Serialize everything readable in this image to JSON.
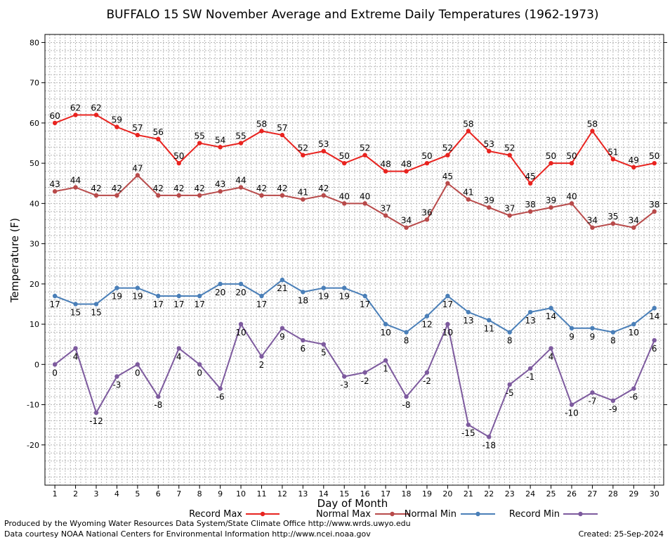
{
  "chart_data": {
    "type": "line",
    "title": "BUFFALO 15 SW November Average and Extreme Daily Temperatures (1962-1973)",
    "xlabel": "Day of Month",
    "ylabel": "Temperature (F)",
    "ylim": [
      -30,
      82
    ],
    "yticks": [
      -20,
      -10,
      0,
      10,
      20,
      30,
      40,
      50,
      60,
      70,
      80
    ],
    "x": [
      1,
      2,
      3,
      4,
      5,
      6,
      7,
      8,
      9,
      10,
      11,
      12,
      13,
      14,
      15,
      16,
      17,
      18,
      19,
      20,
      21,
      22,
      23,
      24,
      25,
      26,
      27,
      28,
      29,
      30
    ],
    "grid": true,
    "legend_position": "bottom",
    "series": [
      {
        "name": "Record Max",
        "color": "#e8231f",
        "label_pos": "above",
        "values": [
          60,
          62,
          62,
          59,
          57,
          56,
          50,
          55,
          54,
          55,
          58,
          57,
          52,
          53,
          50,
          52,
          48,
          48,
          50,
          52,
          58,
          53,
          52,
          45,
          50,
          50,
          58,
          51,
          49,
          50
        ]
      },
      {
        "name": "Normal Max",
        "color": "#b84a4a",
        "label_pos": "above",
        "values": [
          43,
          44,
          42,
          42,
          47,
          42,
          42,
          42,
          43,
          44,
          42,
          42,
          41,
          42,
          40,
          40,
          37,
          34,
          36,
          45,
          41,
          39,
          37,
          38,
          39,
          40,
          34,
          35,
          34,
          38
        ]
      },
      {
        "name": "Normal Min",
        "color": "#4a7fb8",
        "label_pos": "below",
        "values": [
          17,
          15,
          15,
          19,
          19,
          17,
          17,
          17,
          20,
          20,
          17,
          21,
          18,
          19,
          19,
          17,
          10,
          8,
          12,
          17,
          13,
          11,
          8,
          13,
          14,
          9,
          9,
          8,
          10,
          14
        ]
      },
      {
        "name": "Record Min",
        "color": "#7d5a9e",
        "label_pos": "below",
        "values": [
          0,
          4,
          -12,
          -3,
          0,
          -8,
          4,
          0,
          -6,
          10,
          2,
          9,
          6,
          5,
          -3,
          -2,
          1,
          -8,
          -2,
          10,
          -15,
          -18,
          -5,
          -1,
          4,
          -10,
          -7,
          -9,
          -6,
          6
        ]
      }
    ]
  },
  "footer": {
    "line1": "Produced by the Wyoming Water Resources Data System/State Climate Office http://www.wrds.uwyo.edu",
    "line2": "Data courtesy NOAA National Centers for Environmental Information http://www.ncei.noaa.gov",
    "created": "Created:  25-Sep-2024"
  }
}
